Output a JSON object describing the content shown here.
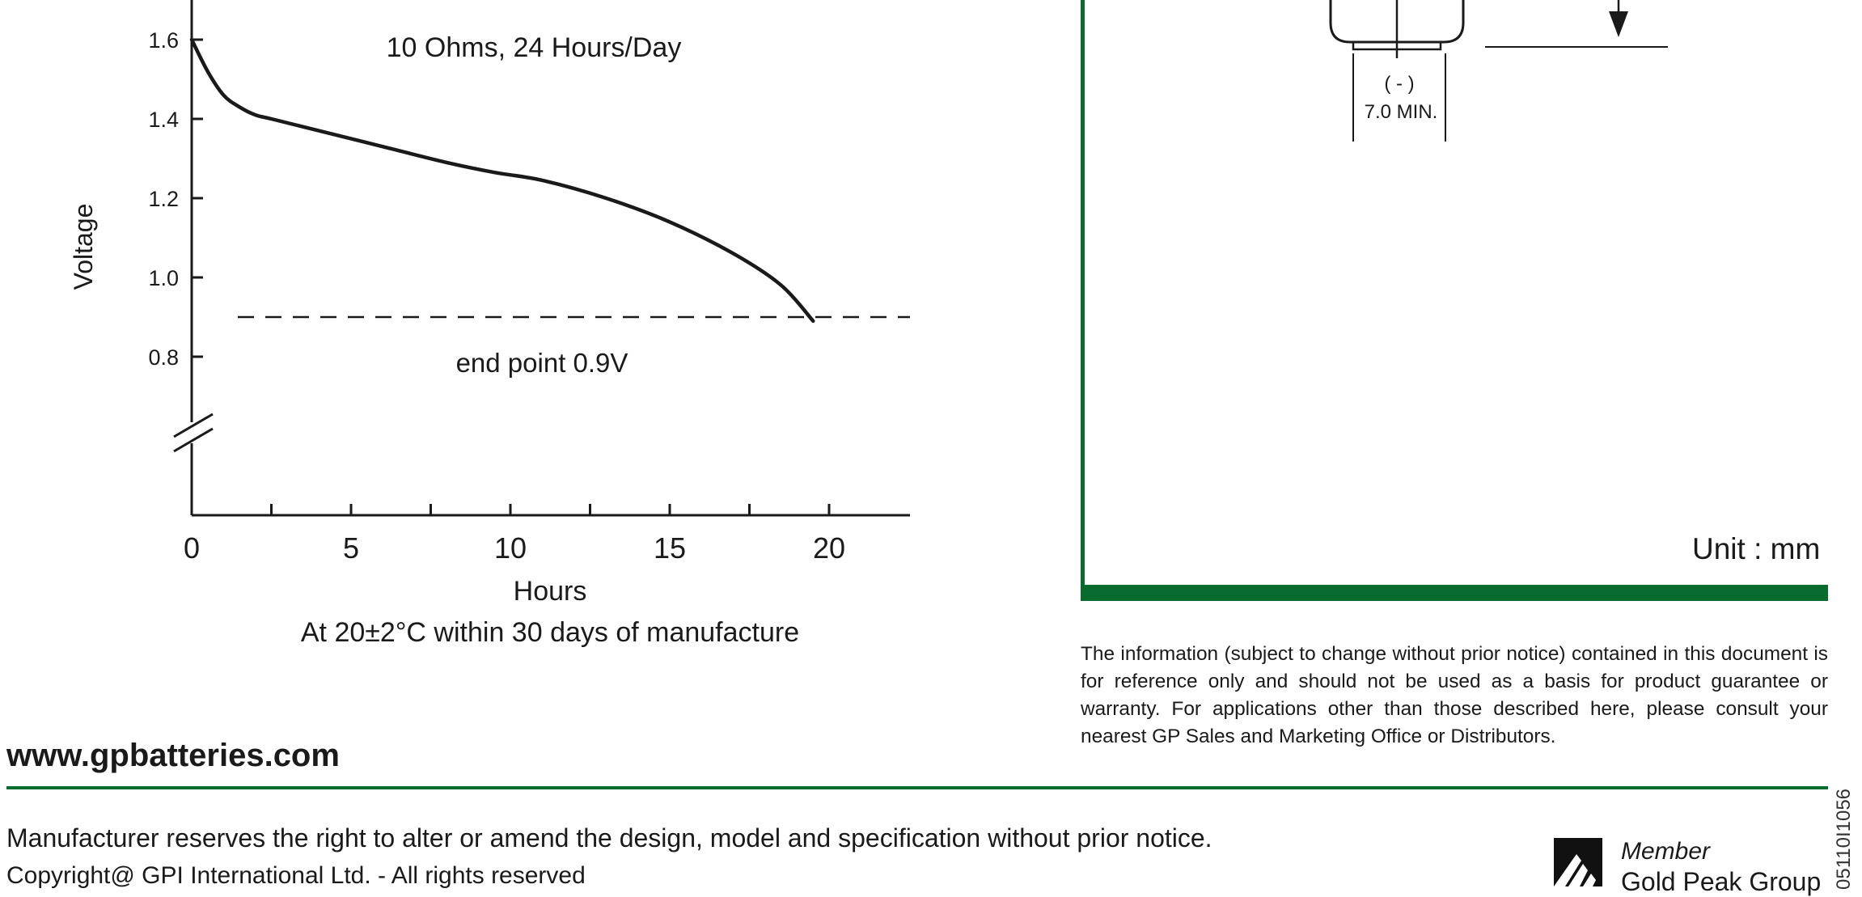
{
  "chart_data": {
    "type": "line",
    "title": "10 Ohms, 24 Hours/Day",
    "xlabel": "Hours",
    "ylabel": "Voltage",
    "subtitle": "At 20±2°C within 30 days of manufacture",
    "xlim": [
      0,
      22.5
    ],
    "ylim": [
      0.6,
      1.7
    ],
    "x_ticks": [
      0,
      5,
      10,
      15,
      20
    ],
    "y_ticks": [
      0.8,
      1.0,
      1.2,
      1.4,
      1.6
    ],
    "y_tick_labels": [
      "0.8",
      "1.0",
      "1.2",
      "1.4",
      "1.6"
    ],
    "axis_break": true,
    "series": [
      {
        "x": [
          0,
          0.5,
          1,
          1.5,
          2,
          2.5,
          4,
          6,
          8,
          9.5,
          11,
          13,
          15,
          17,
          18.5,
          19.5
        ],
        "y": [
          1.6,
          1.52,
          1.46,
          1.43,
          1.41,
          1.4,
          1.37,
          1.33,
          1.29,
          1.265,
          1.245,
          1.2,
          1.14,
          1.06,
          0.98,
          0.89
        ]
      }
    ],
    "reference_line": {
      "y": 0.9,
      "label": "end point 0.9V",
      "style": "dashed"
    }
  },
  "dimension_drawing": {
    "terminal_label": "( - )",
    "min_label": "7.0 MIN."
  },
  "unit_label": "Unit : mm",
  "disclaimer": "The information (subject to change without prior notice) contained in this document is for reference only  and should not be used as a basis for product guarantee or warranty. For applications other than those described here, please consult your nearest GP Sales and Marketing Office or Distributors.",
  "footer": {
    "website": "www.gpbatteries.com",
    "notice": "Manufacturer reserves the right to alter or amend the design, model and specification without prior notice.",
    "copyright": "Copyright@ GPI International Ltd. - All rights reserved",
    "member_label": "Member",
    "group_name": "Gold Peak Group",
    "doc_code": "05110I1056"
  },
  "colors": {
    "brand_green": "#0a6b2f",
    "ink": "#1a1a1a"
  }
}
